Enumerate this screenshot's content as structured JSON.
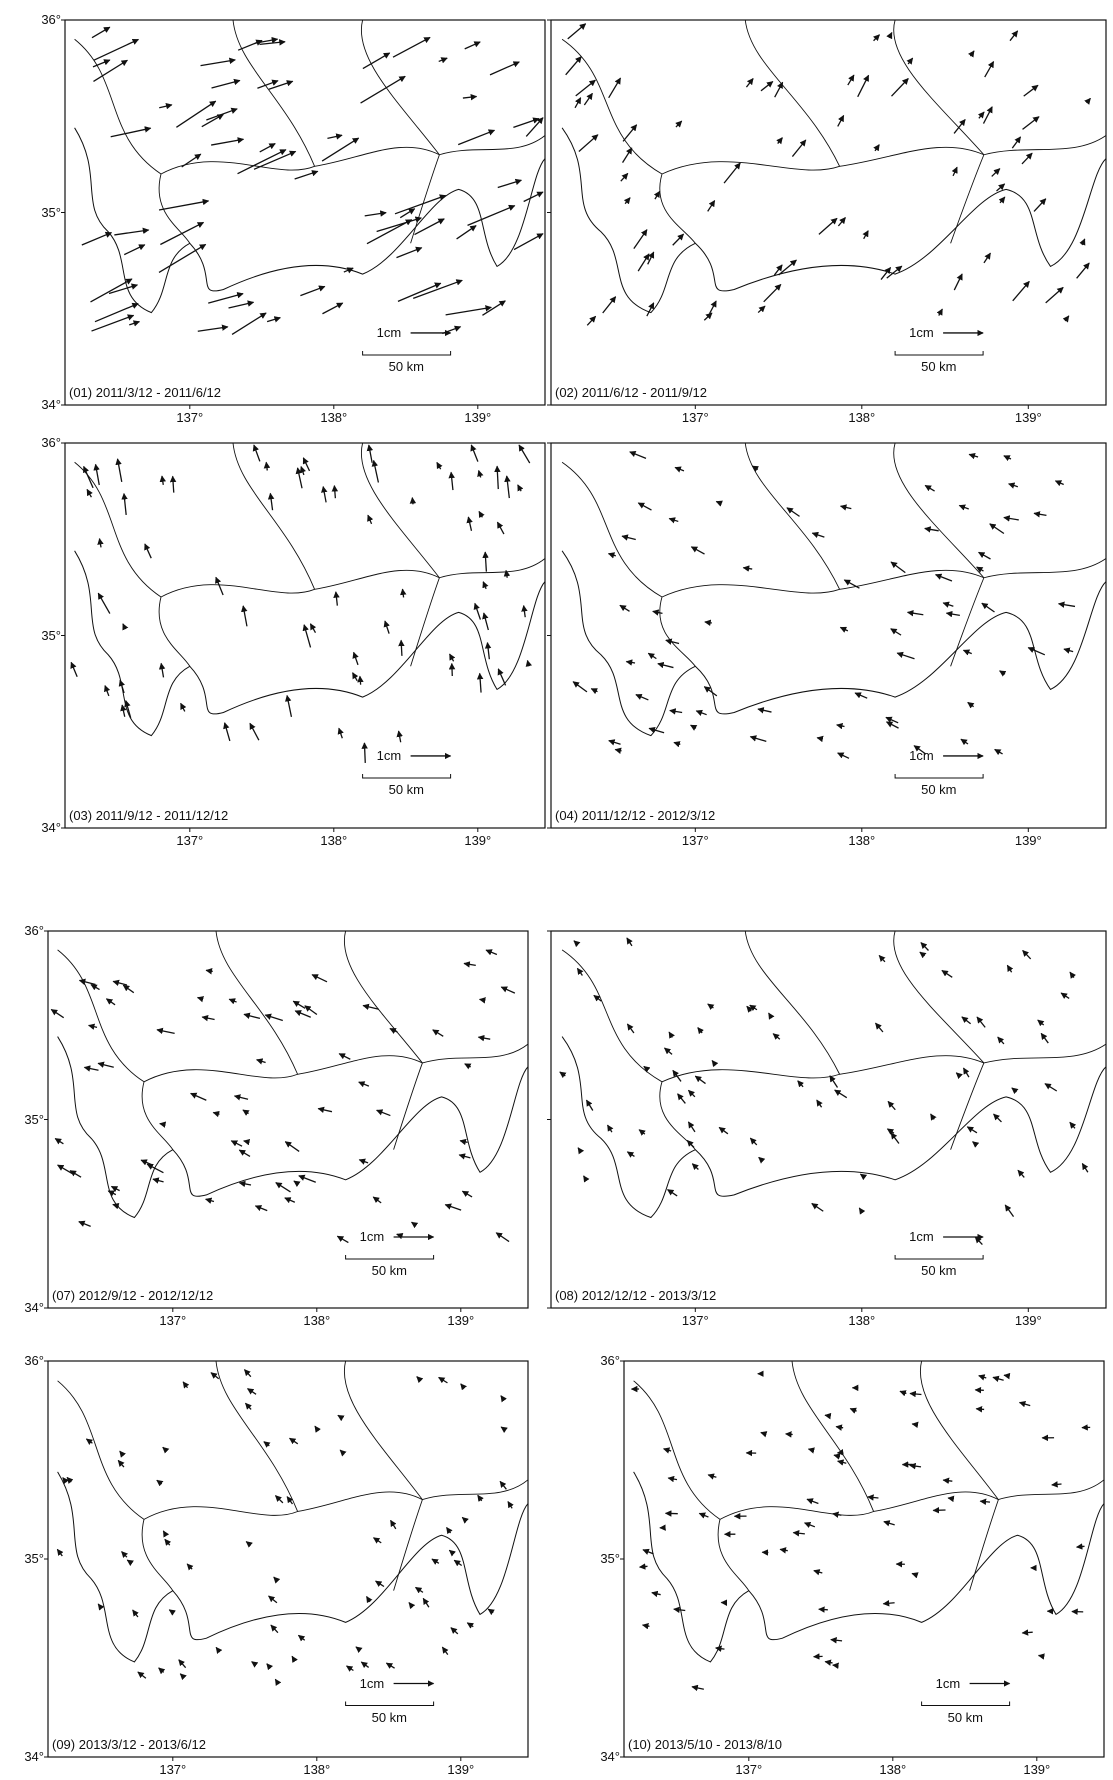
{
  "axes": {
    "lat_ticks": [
      "36°",
      "35°",
      "34°"
    ],
    "lon_ticks": [
      "137°",
      "138°",
      "139°"
    ]
  },
  "scale": {
    "vector_label": "1cm",
    "distance_label": "50 km"
  },
  "panels": [
    {
      "label": "(01) 2011/3/12 -  2011/6/12",
      "intensity": 1.0,
      "dir": "northeast"
    },
    {
      "label": "(02) 2011/6/12 -  2011/9/12",
      "intensity": 0.45,
      "dir": "northeast-north"
    },
    {
      "label": "(03) 2011/9/12 -  2011/12/12",
      "intensity": 0.4,
      "dir": "north-northwest"
    },
    {
      "label": "(04) 2011/12/12 -  2012/3/12",
      "intensity": 0.3,
      "dir": "west-northwest"
    },
    {
      "label": "(07) 2012/9/12 -  2012/12/12",
      "intensity": 0.3,
      "dir": "west-northwest"
    },
    {
      "label": "(08) 2012/12/12 -  2013/3/12",
      "intensity": 0.22,
      "dir": "northwest"
    },
    {
      "label": "(09) 2013/3/12 -  2013/6/12",
      "intensity": 0.15,
      "dir": "northwest"
    },
    {
      "label": "(10) 2013/5/10 -  2013/8/10",
      "intensity": 0.18,
      "dir": "west"
    }
  ]
}
